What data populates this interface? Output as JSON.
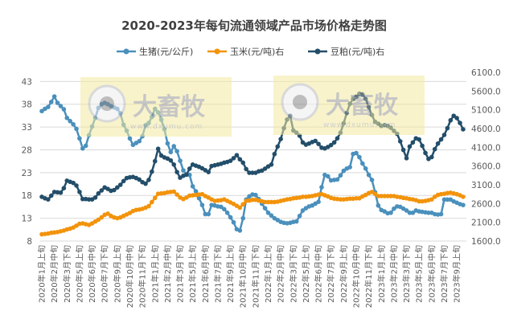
{
  "chart_data": {
    "type": "line",
    "title": "2020-2023年每旬流通领域产品市场价格走势图",
    "xlabel": "",
    "ylabel_left": "",
    "ylabel_right": "",
    "ylim_left": [
      8,
      45
    ],
    "yticks_left": [
      8,
      13,
      18,
      23,
      28,
      33,
      38,
      43
    ],
    "ylim_right": [
      1600,
      6100
    ],
    "yticks_right": [
      "1600.0",
      "2100.0",
      "2600.0",
      "3100.0",
      "3600.0",
      "4100.0",
      "4600.0",
      "5100.0",
      "5600.0",
      "6100.0"
    ],
    "grid": true,
    "legend_position": "top",
    "x_tick_labels": [
      "2020年1月上旬",
      "2020年2月中旬",
      "2020年3月下旬",
      "2020年5月上旬",
      "2020年6月中旬",
      "2020年7月下旬",
      "2020年9月上旬",
      "2020年10月中旬",
      "2020年11月下旬",
      "2021年1月上旬",
      "2021年2月中旬",
      "2021年3月下旬",
      "2021年5月上旬",
      "2021年6月中旬",
      "2021年7月下旬",
      "2021年9月上旬",
      "2021年10月中旬",
      "2021年11月下旬",
      "2022年1月上旬",
      "2022年2月中旬",
      "2022年3月下旬",
      "2022年5月上旬",
      "2022年6月中旬",
      "2022年7月下旬",
      "2022年9月上旬",
      "2022年10月中旬",
      "2022年11月下旬",
      "2023年1月上旬",
      "2023年2月中旬",
      "2023年3月下旬",
      "2023年5月上旬",
      "2023年6月中旬",
      "2023年7月下旬",
      "2023年9月上旬"
    ],
    "series": [
      {
        "name": "生猪(元/公斤)",
        "axis": "left",
        "color": "#4a90bd",
        "values": [
          36.5,
          37.0,
          37.4,
          38.5,
          39.7,
          38.3,
          37.6,
          36.9,
          35.0,
          34.3,
          33.6,
          32.6,
          30.5,
          28.3,
          28.9,
          31.2,
          33.1,
          35.0,
          37.2,
          38.0,
          38.3,
          38.0,
          37.6,
          37.3,
          37.0,
          36.0,
          33.5,
          32.2,
          30.5,
          29.1,
          29.5,
          29.9,
          31.0,
          33.4,
          33.9,
          35.2,
          37.0,
          36.2,
          34.6,
          32.5,
          29.4,
          27.5,
          28.8,
          27.7,
          25.6,
          23.5,
          22.6,
          22.5,
          20.0,
          18.9,
          17.4,
          15.9,
          13.9,
          13.9,
          15.9,
          15.8,
          15.6,
          15.5,
          15.0,
          14.2,
          13.2,
          12.1,
          10.6,
          10.3,
          13.0,
          17.1,
          17.8,
          18.2,
          18.1,
          17.2,
          16.2,
          15.2,
          14.2,
          13.6,
          13.0,
          12.6,
          12.2,
          12.0,
          11.9,
          12.0,
          12.2,
          12.3,
          13.5,
          14.7,
          15.2,
          15.6,
          15.8,
          16.2,
          16.6,
          19.8,
          22.5,
          22.2,
          21.3,
          21.4,
          21.5,
          22.4,
          23.4,
          23.9,
          24.2,
          27.1,
          27.3,
          26.4,
          25.0,
          23.9,
          22.5,
          21.4,
          18.7,
          15.8,
          14.8,
          14.5,
          14.1,
          14.2,
          15.1,
          15.6,
          15.5,
          15.1,
          14.7,
          14.2,
          14.2,
          14.7,
          14.5,
          14.4,
          14.3,
          14.2,
          14.2,
          13.9,
          13.8,
          13.9,
          17.1,
          17.1,
          17.1,
          16.7,
          16.4,
          16.1,
          15.9
        ]
      },
      {
        "name": "玉米(元/吨)右",
        "axis": "right",
        "color": "#f2930b",
        "values": [
          1780,
          1790,
          1800,
          1820,
          1830,
          1840,
          1860,
          1880,
          1910,
          1930,
          1960,
          2010,
          2060,
          2070,
          2050,
          2030,
          2070,
          2120,
          2170,
          2230,
          2300,
          2330,
          2270,
          2230,
          2210,
          2230,
          2270,
          2310,
          2350,
          2400,
          2430,
          2440,
          2460,
          2490,
          2530,
          2640,
          2750,
          2860,
          2870,
          2880,
          2900,
          2910,
          2920,
          2840,
          2760,
          2720,
          2760,
          2810,
          2820,
          2830,
          2840,
          2850,
          2800,
          2760,
          2710,
          2670,
          2680,
          2690,
          2710,
          2670,
          2630,
          2590,
          2540,
          2490,
          2580,
          2670,
          2680,
          2700,
          2700,
          2680,
          2660,
          2640,
          2640,
          2640,
          2640,
          2650,
          2670,
          2690,
          2710,
          2720,
          2740,
          2750,
          2760,
          2780,
          2780,
          2790,
          2800,
          2820,
          2840,
          2850,
          2820,
          2790,
          2750,
          2730,
          2720,
          2710,
          2710,
          2720,
          2730,
          2730,
          2740,
          2740,
          2790,
          2830,
          2880,
          2910,
          2860,
          2800,
          2800,
          2800,
          2800,
          2800,
          2800,
          2780,
          2770,
          2750,
          2740,
          2720,
          2710,
          2690,
          2660,
          2660,
          2670,
          2690,
          2710,
          2780,
          2830,
          2850,
          2860,
          2880,
          2890,
          2870,
          2850,
          2820,
          2780
        ]
      },
      {
        "name": "豆粕(元/吨)右",
        "axis": "right",
        "color": "#234e6a",
        "values": [
          2780,
          2740,
          2710,
          2810,
          2910,
          2900,
          2890,
          3010,
          3210,
          3180,
          3150,
          3080,
          2910,
          2720,
          2720,
          2710,
          2710,
          2760,
          2870,
          2950,
          3030,
          2990,
          2940,
          2960,
          3030,
          3100,
          3200,
          3280,
          3300,
          3310,
          3280,
          3240,
          3170,
          3130,
          3230,
          3450,
          3730,
          4060,
          3880,
          3830,
          3800,
          3750,
          3640,
          3440,
          3290,
          3340,
          3370,
          3530,
          3640,
          3610,
          3580,
          3540,
          3490,
          3440,
          3600,
          3620,
          3640,
          3660,
          3690,
          3710,
          3740,
          3810,
          3890,
          3780,
          3690,
          3520,
          3420,
          3420,
          3420,
          3460,
          3480,
          3530,
          3590,
          3640,
          3920,
          4120,
          4320,
          4610,
          4840,
          4940,
          4550,
          4490,
          4410,
          4230,
          4170,
          4200,
          4240,
          4270,
          4190,
          4090,
          4070,
          4110,
          4160,
          4230,
          4340,
          4490,
          4740,
          5020,
          5260,
          5390,
          5450,
          5530,
          5510,
          5390,
          5170,
          4960,
          4780,
          4730,
          4670,
          4690,
          4670,
          4620,
          4540,
          4460,
          4260,
          4030,
          3810,
          4120,
          4230,
          4340,
          4310,
          4140,
          3950,
          3790,
          3840,
          4050,
          4200,
          4310,
          4430,
          4610,
          4820,
          4940,
          4880,
          4750,
          4580
        ]
      }
    ]
  },
  "watermark": {
    "brand": "大畜牧",
    "url": "www.dxumu.com"
  }
}
